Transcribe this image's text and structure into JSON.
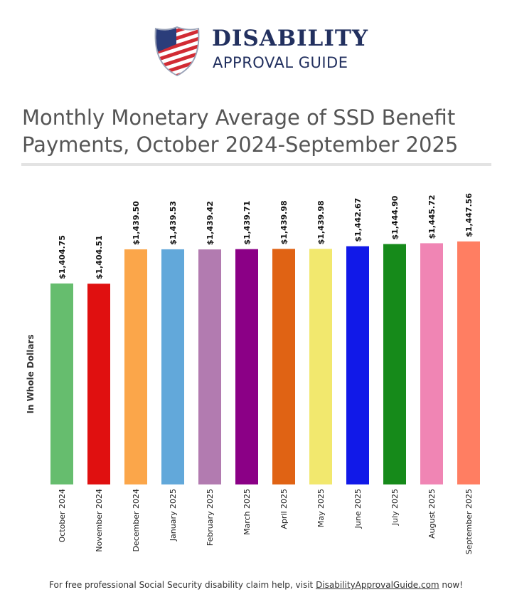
{
  "logo": {
    "line1": "DISABILITY",
    "line2": "APPROVAL GUIDE",
    "icon": "us-flag-shield-icon"
  },
  "header": {
    "title": "Monthly Monetary Average of SSD Benefit Payments, October 2024-September 2025"
  },
  "chart_data": {
    "type": "bar",
    "title": "Monthly Monetary Average of SSD Benefit Payments, October 2024-September 2025",
    "xlabel": "",
    "ylabel": "In Whole Dollars",
    "ylim": [
      1200,
      1450
    ],
    "grid": false,
    "categories": [
      "October 2024",
      "November 2024",
      "December 2024",
      "January 2025",
      "February 2025",
      "March 2025",
      "April 2025",
      "May 2025",
      "June 2025",
      "July 2025",
      "August 2025",
      "September 2025"
    ],
    "values": [
      1404.75,
      1404.51,
      1439.5,
      1439.53,
      1439.42,
      1439.71,
      1439.98,
      1439.98,
      1442.67,
      1444.9,
      1445.72,
      1447.56
    ],
    "data_labels": [
      "$1,404.75",
      "$1,404.51",
      "$1,439.50",
      "$1,439.53",
      "$1,439.42",
      "$1,439.71",
      "$1,439.98",
      "$1,439.98",
      "$1,442.67",
      "$1,444.90",
      "$1,445.72",
      "$1,447.56"
    ],
    "colors": [
      "#66bd6e",
      "#e01010",
      "#fba64a",
      "#62a8da",
      "#b27bb0",
      "#8b0086",
      "#e06314",
      "#f2e86e",
      "#1119e8",
      "#168a1a",
      "#f085b4",
      "#ff7e62"
    ]
  },
  "footer": {
    "text": "For free professional Social Security disability claim help, visit ",
    "link": "DisabilityApprovalGuide.com",
    "suffix": " now!"
  }
}
